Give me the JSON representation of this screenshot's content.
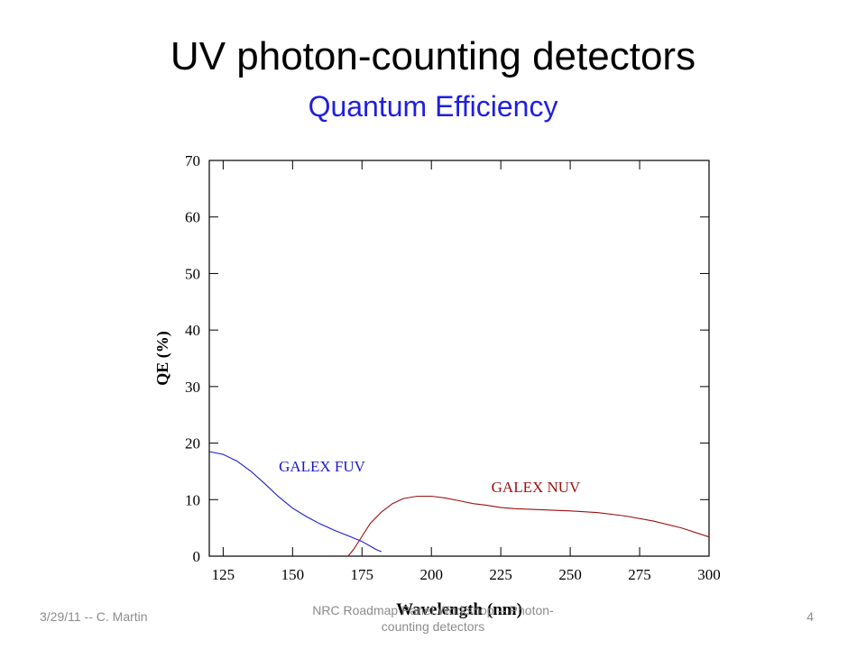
{
  "slide": {
    "title": "UV photon-counting detectors",
    "subtitle": "Quantum Efficiency"
  },
  "footer": {
    "left": "3/29/11 -- C. Martin",
    "center": "NRC Roadmap Panel Workshop -- Photon-counting detectors",
    "page_number": "4"
  },
  "colors": {
    "subtitle": "#1f1fe0",
    "fuv": "#1a1ac8",
    "nuv": "#9b1010"
  },
  "chart_data": {
    "type": "line",
    "title": "",
    "xlabel": "Wavelength (nm)",
    "ylabel": "QE (%)",
    "xlim": [
      120,
      300
    ],
    "ylim": [
      0,
      70
    ],
    "xticks": [
      125,
      150,
      175,
      200,
      225,
      250,
      275,
      300
    ],
    "yticks": [
      0,
      10,
      20,
      30,
      40,
      50,
      60,
      70
    ],
    "grid": false,
    "legend": "inline labels",
    "series": [
      {
        "name": "GALEX FUV",
        "color": "#1a1ac8",
        "points": [
          [
            120,
            18.5
          ],
          [
            125,
            18.0
          ],
          [
            130,
            16.8
          ],
          [
            135,
            15.0
          ],
          [
            140,
            12.8
          ],
          [
            145,
            10.5
          ],
          [
            150,
            8.5
          ],
          [
            155,
            7.0
          ],
          [
            160,
            5.7
          ],
          [
            165,
            4.6
          ],
          [
            170,
            3.6
          ],
          [
            175,
            2.6
          ],
          [
            180,
            1.2
          ],
          [
            182,
            0.8
          ]
        ]
      },
      {
        "name": "GALEX NUV",
        "color": "#9b1010",
        "points": [
          [
            170,
            0
          ],
          [
            172,
            1.2
          ],
          [
            175,
            3.5
          ],
          [
            178,
            5.8
          ],
          [
            182,
            7.8
          ],
          [
            186,
            9.3
          ],
          [
            190,
            10.2
          ],
          [
            195,
            10.6
          ],
          [
            200,
            10.6
          ],
          [
            205,
            10.3
          ],
          [
            210,
            9.8
          ],
          [
            215,
            9.3
          ],
          [
            220,
            9.0
          ],
          [
            225,
            8.6
          ],
          [
            230,
            8.4
          ],
          [
            240,
            8.2
          ],
          [
            250,
            8.0
          ],
          [
            260,
            7.7
          ],
          [
            270,
            7.1
          ],
          [
            280,
            6.2
          ],
          [
            290,
            5.0
          ],
          [
            300,
            3.4
          ]
        ]
      }
    ]
  }
}
